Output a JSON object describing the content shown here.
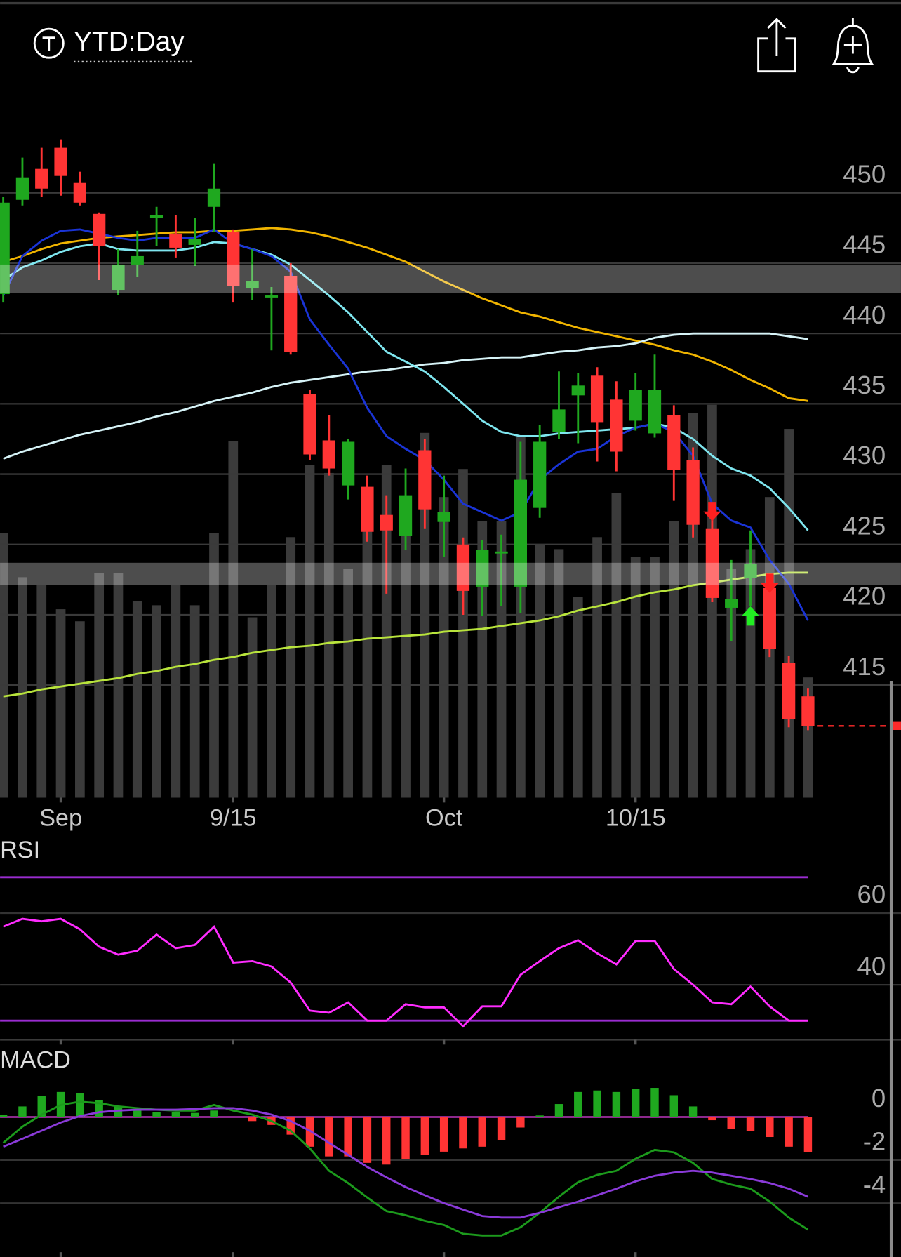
{
  "chart_data": [
    {
      "type": "candlestick",
      "title": "YTD:Day",
      "categories": [
        null,
        null,
        null,
        "Sep",
        null,
        null,
        null,
        null,
        null,
        null,
        null,
        null,
        "9/15",
        null,
        null,
        null,
        null,
        null,
        null,
        null,
        null,
        null,
        null,
        "Oct",
        null,
        null,
        null,
        null,
        null,
        null,
        null,
        null,
        null,
        "10/15",
        null,
        null,
        null,
        null,
        null,
        null,
        null,
        null,
        null
      ],
      "open": [
        442.8,
        449.5,
        451.7,
        453.2,
        450.7,
        448.5,
        443.1,
        444.9,
        448.2,
        447.1,
        446.3,
        449.0,
        447.2,
        443.2,
        442.6,
        444.1,
        435.7,
        432.4,
        429.2,
        429.1,
        427.1,
        425.6,
        431.7,
        426.6,
        425.0,
        422.0,
        424.4,
        422.0,
        427.6,
        433.0,
        435.6,
        437.0,
        435.3,
        433.8,
        432.9,
        434.2,
        431.0,
        426.1,
        420.5,
        422.6,
        421.9,
        416.6,
        414.2
      ],
      "high": [
        449.7,
        452.5,
        453.2,
        453.8,
        451.5,
        448.6,
        446.0,
        447.3,
        449.0,
        448.4,
        448.2,
        452.1,
        447.4,
        446.0,
        443.3,
        445.0,
        436.0,
        434.2,
        432.5,
        429.9,
        428.5,
        430.4,
        432.5,
        429.9,
        425.5,
        425.3,
        425.7,
        432.3,
        433.5,
        437.3,
        437.2,
        437.6,
        436.6,
        437.2,
        438.5,
        434.9,
        431.9,
        427.8,
        423.9,
        426.0,
        422.7,
        417.1,
        414.8
      ],
      "low": [
        442.2,
        449.1,
        449.7,
        449.8,
        449.1,
        443.8,
        442.7,
        444.0,
        446.2,
        445.4,
        444.8,
        447.2,
        442.2,
        442.4,
        438.8,
        438.5,
        431.0,
        429.9,
        428.2,
        425.2,
        421.5,
        424.6,
        426.1,
        424.1,
        420.0,
        419.9,
        420.6,
        420.1,
        426.9,
        432.5,
        432.2,
        430.9,
        430.2,
        433.1,
        432.6,
        428.1,
        425.5,
        420.9,
        418.1,
        420.6,
        417.0,
        412.0,
        411.8
      ],
      "close": [
        449.3,
        451.1,
        450.3,
        451.2,
        449.3,
        446.2,
        444.9,
        445.5,
        448.4,
        446.1,
        446.7,
        450.3,
        443.4,
        443.7,
        442.7,
        438.7,
        431.4,
        430.4,
        432.3,
        425.9,
        426.0,
        428.5,
        427.5,
        427.3,
        421.7,
        424.6,
        424.5,
        429.6,
        432.3,
        434.6,
        436.3,
        433.7,
        431.6,
        436.0,
        436.0,
        430.3,
        426.4,
        421.2,
        421.1,
        423.6,
        417.6,
        412.6,
        412.1
      ],
      "up_color": "#1fa81f",
      "down_color": "#ff3434",
      "volume": [
        66,
        55,
        53,
        47,
        44,
        56,
        56,
        49,
        48,
        53,
        48,
        66,
        89,
        45,
        53,
        65,
        83,
        81,
        57,
        77,
        83,
        71,
        91,
        75,
        82,
        69,
        69,
        90,
        63,
        62,
        50,
        65,
        76,
        60,
        60,
        69,
        96,
        98,
        57,
        62,
        75,
        92,
        30
      ],
      "volume_lim": [
        0,
        100
      ],
      "volume_color": "#3b3b3b",
      "series": [
        {
          "color": "#f0b400",
          "values": [
            445.1,
            445.5,
            446.0,
            446.4,
            446.6,
            446.8,
            446.9,
            447.0,
            447.1,
            447.2,
            447.2,
            447.3,
            447.3,
            447.4,
            447.5,
            447.4,
            447.2,
            446.9,
            446.5,
            446.1,
            445.6,
            445.1,
            444.4,
            443.7,
            443.1,
            442.5,
            442.0,
            441.5,
            441.2,
            440.8,
            440.4,
            440.1,
            439.8,
            439.5,
            439.2,
            438.8,
            438.5,
            438.0,
            437.4,
            436.7,
            436.1,
            435.4,
            435.2
          ]
        },
        {
          "color": "#d6f3f7",
          "values": [
            431.1,
            431.6,
            432.0,
            432.4,
            432.8,
            433.1,
            433.4,
            433.7,
            434.1,
            434.4,
            434.8,
            435.2,
            435.5,
            435.8,
            436.2,
            436.5,
            436.7,
            436.9,
            437.1,
            437.3,
            437.4,
            437.6,
            437.8,
            437.9,
            438.1,
            438.2,
            438.3,
            438.3,
            438.5,
            438.7,
            438.8,
            439.0,
            439.1,
            439.3,
            439.7,
            439.9,
            440.0,
            440.0,
            440.0,
            440.0,
            440.0,
            439.8,
            439.6
          ]
        },
        {
          "color": "#b9e43c",
          "values": [
            414.2,
            414.4,
            414.7,
            414.9,
            415.1,
            415.3,
            415.5,
            415.8,
            416.0,
            416.3,
            416.5,
            416.8,
            417.0,
            417.3,
            417.5,
            417.7,
            417.8,
            418.0,
            418.1,
            418.3,
            418.4,
            418.5,
            418.6,
            418.8,
            418.9,
            419.0,
            419.2,
            419.4,
            419.6,
            419.9,
            420.3,
            420.6,
            420.9,
            421.3,
            421.6,
            421.8,
            422.1,
            422.3,
            422.5,
            422.7,
            422.9,
            423.0,
            423.0
          ]
        },
        {
          "color": "#7fe6ef",
          "values": [
            443.8,
            444.7,
            445.2,
            445.8,
            446.2,
            446.4,
            446.0,
            445.9,
            445.9,
            445.9,
            446.1,
            446.5,
            446.4,
            446.0,
            445.6,
            444.9,
            443.8,
            442.7,
            441.5,
            440.1,
            438.7,
            438.0,
            437.3,
            436.2,
            435.0,
            433.8,
            433.0,
            432.7,
            432.7,
            432.9,
            433.0,
            433.1,
            433.2,
            433.3,
            433.6,
            433.3,
            432.5,
            431.3,
            430.4,
            429.9,
            429.0,
            427.6,
            426.0
          ]
        },
        {
          "color": "#1a34d6",
          "values": [
            442.7,
            445.5,
            446.6,
            447.3,
            447.4,
            447.1,
            446.8,
            446.6,
            446.8,
            446.8,
            446.8,
            447.4,
            446.4,
            446.0,
            445.5,
            444.4,
            441.0,
            439.2,
            437.5,
            434.7,
            432.7,
            431.8,
            431.0,
            429.6,
            427.9,
            427.3,
            426.7,
            427.3,
            429.6,
            430.7,
            431.6,
            431.8,
            432.7,
            433.3,
            433.6,
            433.0,
            431.3,
            427.9,
            426.7,
            426.2,
            423.9,
            422.2,
            419.6
          ]
        }
      ],
      "zones": [
        [
          442.9,
          444.9
        ],
        [
          422.1,
          423.7
        ]
      ],
      "zone_color": "rgba(255,255,255,0.3)",
      "signals": [
        {
          "index": 37,
          "direction": "down",
          "color": "#ff2020"
        },
        {
          "index": 39,
          "direction": "up",
          "color": "#22ee22"
        },
        {
          "index": 40,
          "direction": "down",
          "color": "#ff2020"
        }
      ],
      "last_price_line": true,
      "last_price_color": "#ff2a2a",
      "ylim": [
        407,
        456.3
      ],
      "yticks": [
        415,
        420,
        425,
        430,
        435,
        440,
        445,
        450
      ],
      "grid": true
    },
    {
      "type": "line",
      "title": "RSI",
      "values": [
        56.2,
        58.4,
        57.7,
        58.4,
        55.5,
        50.6,
        48.4,
        49.5,
        54.0,
        50.2,
        51.1,
        56.2,
        46.2,
        46.6,
        45.1,
        40.6,
        32.8,
        32.2,
        35.1,
        30.0,
        30.0,
        34.6,
        33.7,
        33.7,
        28.4,
        34.0,
        34.0,
        42.8,
        46.6,
        50.2,
        52.4,
        48.8,
        45.7,
        52.2,
        52.2,
        44.4,
        40.0,
        35.1,
        34.6,
        39.5,
        34.0,
        30.0,
        30.0
      ],
      "color": "#ff2cff",
      "bands": [
        70,
        30
      ],
      "band_color": "#9a2cd0",
      "ylim": [
        24,
        81
      ],
      "yticks": [
        40,
        60
      ],
      "grid": true
    },
    {
      "type": "macd",
      "title": "MACD",
      "histogram": [
        0.11,
        0.49,
        0.97,
        1.16,
        1.12,
        0.79,
        0.49,
        0.3,
        0.22,
        0.22,
        0.19,
        0.3,
        0,
        -0.19,
        -0.37,
        -0.82,
        -1.38,
        -1.83,
        -1.83,
        -2.13,
        -2.21,
        -1.94,
        -1.76,
        -1.61,
        -1.46,
        -1.38,
        -1.08,
        -0.49,
        0.07,
        0.6,
        1.16,
        1.23,
        1.16,
        1.31,
        1.35,
        1.01,
        0.49,
        -0.15,
        -0.56,
        -0.64,
        -0.93,
        -1.38,
        -1.64
      ],
      "up_color": "#1fa81f",
      "down_color": "#ff3434",
      "series": [
        {
          "color": "#1c9a1c",
          "values": [
            -1.2,
            -0.45,
            0.11,
            0.56,
            0.71,
            0.64,
            0.49,
            0.41,
            0.34,
            0.3,
            0.3,
            0.56,
            0.3,
            0.11,
            -0.19,
            -0.64,
            -1.46,
            -2.5,
            -3.07,
            -3.74,
            -4.37,
            -4.56,
            -4.82,
            -5.01,
            -5.42,
            -5.5,
            -5.5,
            -5.12,
            -4.45,
            -3.7,
            -3.03,
            -2.69,
            -2.5,
            -1.94,
            -1.53,
            -1.64,
            -2.13,
            -2.88,
            -3.14,
            -3.33,
            -3.93,
            -4.67,
            -5.23
          ]
        },
        {
          "color": "#8a3ad8",
          "values": [
            -1.38,
            -1.01,
            -0.64,
            -0.26,
            0.04,
            0.22,
            0.3,
            0.34,
            0.34,
            0.34,
            0.37,
            0.41,
            0.41,
            0.3,
            0.11,
            -0.19,
            -0.64,
            -1.2,
            -1.76,
            -2.32,
            -2.8,
            -3.25,
            -3.63,
            -4.0,
            -4.3,
            -4.6,
            -4.67,
            -4.67,
            -4.45,
            -4.19,
            -3.93,
            -3.63,
            -3.33,
            -2.99,
            -2.73,
            -2.58,
            -2.5,
            -2.58,
            -2.73,
            -2.88,
            -3.07,
            -3.33,
            -3.7
          ]
        }
      ],
      "zero_color": "#e040e0",
      "ylim": [
        -6.5,
        3.1
      ],
      "yticks": [
        0,
        -2,
        -4
      ],
      "grid": true
    }
  ]
}
